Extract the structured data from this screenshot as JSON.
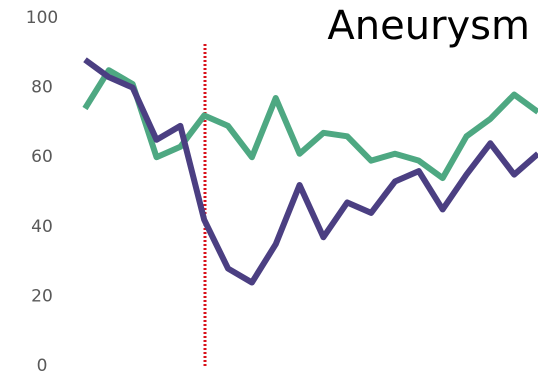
{
  "chart_data": {
    "type": "line",
    "title": "Aneurysm",
    "categories": [
      null,
      null,
      null,
      null,
      null,
      null,
      null,
      null,
      null,
      null,
      null,
      null,
      null,
      null,
      null,
      null,
      null,
      null,
      null,
      null
    ],
    "series": [
      {
        "color": "#4ea882",
        "values": [
          74,
          85,
          81,
          60,
          63,
          72,
          69,
          60,
          77,
          61,
          67,
          66,
          59,
          61,
          59,
          54,
          66,
          71,
          78,
          73
        ]
      },
      {
        "color": "#4b3f82",
        "values": [
          88,
          83,
          80,
          65,
          69,
          42,
          28,
          24,
          35,
          52,
          37,
          47,
          44,
          53,
          56,
          45,
          55,
          64,
          55,
          61
        ]
      }
    ],
    "ylim": [
      0,
      100
    ],
    "yticks": [
      0,
      20,
      40,
      60,
      80,
      100
    ],
    "grid": false
  }
}
